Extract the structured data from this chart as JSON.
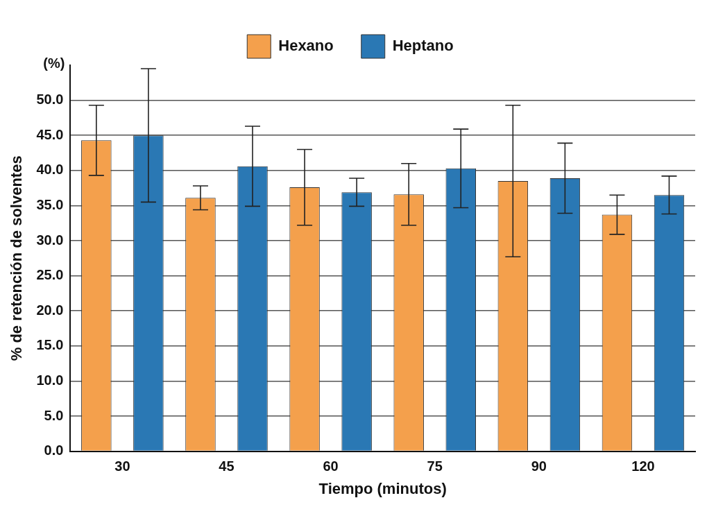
{
  "chart_data": {
    "type": "bar",
    "xlabel": "Tiempo (minutos)",
    "ylabel": "% de retención de solventes",
    "annotations": [
      "(%)"
    ],
    "categories": [
      "30",
      "45",
      "60",
      "75",
      "90",
      "120"
    ],
    "series": [
      {
        "name": "Hexano",
        "color": "#f4a04c",
        "values": [
          44.3,
          36.1,
          37.6,
          36.6,
          38.5,
          33.7
        ],
        "errors": [
          5.0,
          1.7,
          5.4,
          4.4,
          10.8,
          2.8
        ]
      },
      {
        "name": "Heptano",
        "color": "#2a78b4",
        "values": [
          45.0,
          40.6,
          36.9,
          40.3,
          38.9,
          36.5
        ],
        "errors": [
          9.5,
          5.7,
          2.0,
          5.6,
          5.0,
          2.7
        ]
      }
    ],
    "ylim": [
      0,
      55
    ],
    "yticks": [
      {
        "value": 0,
        "label": "0.0"
      },
      {
        "value": 5,
        "label": "5.0"
      },
      {
        "value": 10,
        "label": "10.0"
      },
      {
        "value": 15,
        "label": "15.0"
      },
      {
        "value": 20,
        "label": "20.0"
      },
      {
        "value": 25,
        "label": "25.0"
      },
      {
        "value": 30,
        "label": "30.0"
      },
      {
        "value": 35,
        "label": "35.0"
      },
      {
        "value": 40,
        "label": "40.0"
      },
      {
        "value": 45,
        "label": "45.0"
      },
      {
        "value": 50,
        "label": "50.0"
      }
    ],
    "grid": "y",
    "legend": "top"
  }
}
